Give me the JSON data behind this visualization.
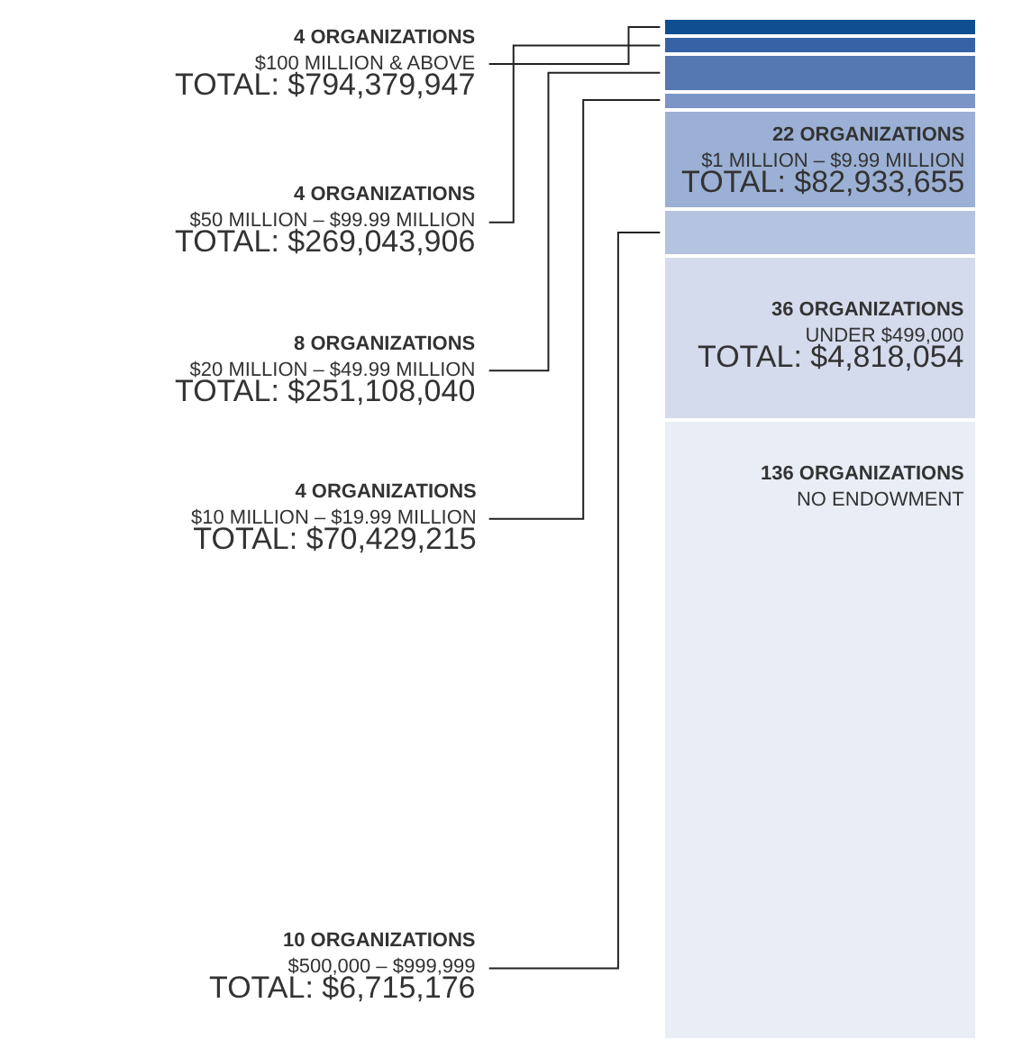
{
  "chart_data": {
    "type": "bar",
    "stacked": true,
    "categories": [
      null
    ],
    "series": [
      {
        "name": "NO ENDOWMENT",
        "color": "#e9edf5",
        "values": [
          136
        ],
        "value_labels": [
          "136 ORGANIZATIONS"
        ]
      },
      {
        "name": "UNDER $499,000",
        "color": "#d4dbec",
        "values": [
          36
        ],
        "value_labels": [
          "36 ORGANIZATIONS"
        ]
      },
      {
        "name": "$500,000 – $999,999",
        "color": "#b4c3df",
        "values": [
          10
        ],
        "value_labels": [
          "10 ORGANIZATIONS"
        ]
      },
      {
        "name": "$1 MILLION – $9.99 MILLION",
        "color": "#9bb0d4",
        "values": [
          22
        ],
        "value_labels": [
          "22 ORGANIZATIONS"
        ]
      },
      {
        "name": "$10 MILLION – $19.99 MILLION",
        "color": "#7a95c6",
        "values": [
          4
        ],
        "value_labels": [
          "4 ORGANIZATIONS"
        ]
      },
      {
        "name": "$20 MILLION – $49.99 MILLION",
        "color": "#5577b2",
        "values": [
          8
        ],
        "value_labels": [
          "8 ORGANIZATIONS"
        ]
      },
      {
        "name": "$50 MILLION – $99.99 MILLION",
        "color": "#3663a6",
        "values": [
          4
        ],
        "value_labels": [
          "4 ORGANIZATIONS"
        ]
      },
      {
        "name": "$100 MILLION & ABOVE",
        "color": "#0e4f92",
        "values": [
          4
        ],
        "value_labels": [
          "4 ORGANIZATIONS"
        ]
      }
    ],
    "annotations": [
      "TOTAL: $794,379,947",
      "TOTAL: $269,043,906",
      "TOTAL: $251,108,040",
      "TOTAL: $70,429,215",
      "TOTAL: $82,933,655",
      "TOTAL: $6,715,176",
      "TOTAL: $4,818,054"
    ]
  }
}
